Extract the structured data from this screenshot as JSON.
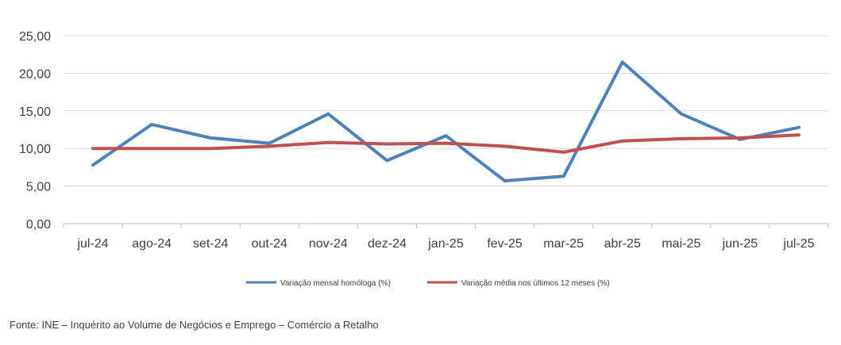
{
  "chart_data": {
    "type": "line",
    "categories": [
      "jul-24",
      "ago-24",
      "set-24",
      "out-24",
      "nov-24",
      "dez-24",
      "jan-25",
      "fev-25",
      "mar-25",
      "abr-25",
      "mai-25",
      "jun-25",
      "jul-25"
    ],
    "series": [
      {
        "name": "Variação mensal homóloga (%)",
        "color": "#4F81BD",
        "values": [
          7.8,
          13.2,
          11.4,
          10.7,
          14.6,
          8.4,
          11.7,
          5.7,
          6.3,
          21.5,
          14.6,
          11.2,
          12.8
        ]
      },
      {
        "name": "Variação média nos últimos 12 meses (%)",
        "color": "#C0504D",
        "values": [
          10.0,
          10.0,
          10.0,
          10.3,
          10.8,
          10.6,
          10.7,
          10.3,
          9.5,
          11.0,
          11.3,
          11.4,
          11.8
        ]
      }
    ],
    "y_ticks": [
      "0,00",
      "5,00",
      "10,00",
      "15,00",
      "20,00",
      "25,00"
    ],
    "ylim": [
      0,
      25
    ],
    "grid": true,
    "legend_position": "bottom",
    "title": "",
    "xlabel": "",
    "ylabel": ""
  },
  "source": "Fonte: INE – Inquérito ao Volume de Negócios e Emprego – Comércio a Retalho"
}
